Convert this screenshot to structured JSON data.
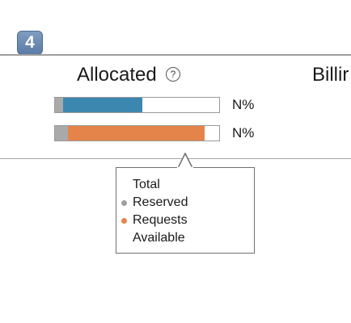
{
  "step": {
    "number": "4"
  },
  "columns": {
    "allocated": {
      "label": "Allocated",
      "help_icon": "question-circle-icon"
    },
    "billing": {
      "label": "Billir"
    }
  },
  "bars": [
    {
      "segments": [
        {
          "name": "Reserved",
          "fraction": 0.05,
          "color": "#a9a9a9"
        },
        {
          "name": "Requests",
          "fraction": 0.48,
          "color": "#3c87b0"
        }
      ],
      "value_label": "N%"
    },
    {
      "segments": [
        {
          "name": "Reserved",
          "fraction": 0.08,
          "color": "#a9a9a9"
        },
        {
          "name": "Requests",
          "fraction": 0.83,
          "color": "#e5844a"
        }
      ],
      "value_label": "N%"
    }
  ],
  "legend": {
    "items": [
      {
        "label": "Total",
        "dot_color": ""
      },
      {
        "label": "Reserved",
        "dot_color": "#9e9e9e"
      },
      {
        "label": "Requests",
        "dot_color": "#e5844a"
      },
      {
        "label": "Available",
        "dot_color": ""
      }
    ]
  }
}
